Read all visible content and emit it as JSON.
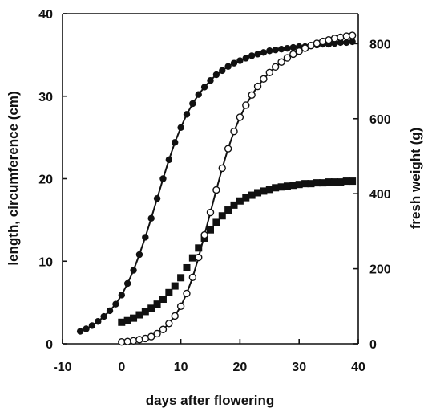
{
  "chart_data": {
    "type": "scatter",
    "xlabel": "days after flowering",
    "ylabel_left": "length, circumference (cm)",
    "ylabel_right": "fresh weight (g)",
    "xlim": [
      -10,
      40
    ],
    "ylim_left": [
      0,
      40
    ],
    "ylim_right": [
      0,
      880
    ],
    "x_ticks": [
      -10,
      0,
      10,
      20,
      30,
      40
    ],
    "y_left_ticks": [
      0,
      10,
      20,
      30,
      40
    ],
    "y_right_ticks": [
      0,
      200,
      400,
      600,
      800
    ],
    "grid": false,
    "legend": "none",
    "series": [
      {
        "marker": "filled-circle",
        "axis": "left",
        "fit_line": true,
        "color": "#111111",
        "x": [
          -7,
          -6,
          -5,
          -4,
          -3,
          -2,
          -1,
          0,
          1,
          2,
          3,
          4,
          5,
          6,
          7,
          8,
          9,
          10,
          11,
          12,
          13,
          14,
          15,
          16,
          17,
          18,
          19,
          20,
          21,
          22,
          23,
          24,
          25,
          26,
          27,
          28,
          29,
          30,
          31,
          32,
          33,
          34,
          35,
          36,
          37,
          38,
          39
        ],
        "values": [
          1.5,
          1.8,
          2.2,
          2.7,
          3.3,
          4.0,
          4.8,
          5.9,
          7.3,
          8.9,
          10.8,
          12.9,
          15.2,
          17.6,
          20.0,
          22.3,
          24.4,
          26.2,
          27.8,
          29.1,
          30.2,
          31.1,
          31.9,
          32.6,
          33.1,
          33.6,
          34.0,
          34.3,
          34.6,
          34.9,
          35.1,
          35.3,
          35.5,
          35.6,
          35.7,
          35.8,
          35.9,
          36.0,
          36.0,
          36.1,
          36.2,
          36.3,
          36.3,
          36.4,
          36.5,
          36.5,
          36.6
        ]
      },
      {
        "marker": "filled-square",
        "axis": "left",
        "fit_line": false,
        "color": "#111111",
        "x": [
          0,
          1,
          2,
          3,
          4,
          5,
          6,
          7,
          8,
          9,
          10,
          11,
          12,
          13,
          14,
          15,
          16,
          17,
          18,
          19,
          20,
          21,
          22,
          23,
          24,
          25,
          26,
          27,
          28,
          29,
          30,
          31,
          32,
          33,
          34,
          35,
          36,
          37,
          38,
          39
        ],
        "values": [
          2.6,
          2.8,
          3.1,
          3.5,
          3.9,
          4.3,
          4.8,
          5.4,
          6.2,
          7.0,
          8.0,
          9.2,
          10.4,
          11.6,
          12.8,
          13.8,
          14.7,
          15.5,
          16.2,
          16.8,
          17.3,
          17.7,
          18.0,
          18.3,
          18.5,
          18.7,
          18.9,
          19.0,
          19.1,
          19.2,
          19.3,
          19.4,
          19.4,
          19.5,
          19.5,
          19.6,
          19.6,
          19.6,
          19.7,
          19.7
        ]
      },
      {
        "marker": "open-circle",
        "axis": "right",
        "fit_line": true,
        "color": "#111111",
        "x": [
          0,
          1,
          2,
          3,
          4,
          5,
          6,
          7,
          8,
          9,
          10,
          11,
          12,
          13,
          14,
          15,
          16,
          17,
          18,
          19,
          20,
          21,
          22,
          23,
          24,
          25,
          26,
          27,
          28,
          29,
          30,
          31,
          32,
          33,
          34,
          35,
          36,
          37,
          38,
          39
        ],
        "values": [
          5,
          6,
          8,
          11,
          14,
          19,
          27,
          38,
          54,
          74,
          100,
          134,
          177,
          230,
          290,
          350,
          410,
          468,
          520,
          566,
          604,
          636,
          663,
          686,
          706,
          723,
          738,
          751,
          762,
          772,
          780,
          788,
          795,
          801,
          806,
          810,
          814,
          817,
          820,
          822
        ]
      }
    ]
  }
}
